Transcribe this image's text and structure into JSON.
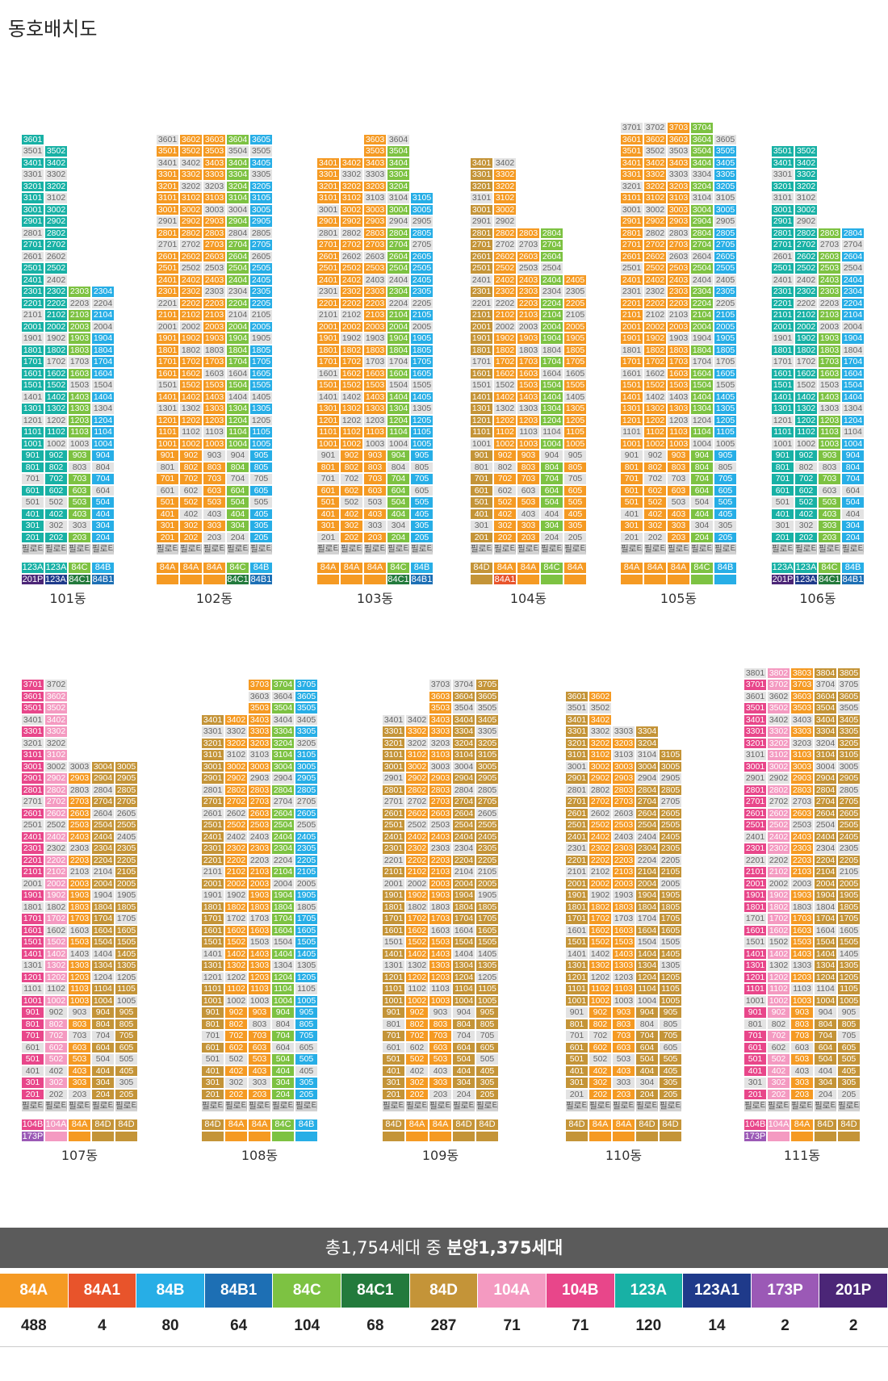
{
  "title": "동호배치도",
  "colors": {
    "84A": "#f59a23",
    "84A1": "#e8542b",
    "84B": "#27aee6",
    "84B1": "#1d6fb4",
    "84C": "#7dc242",
    "84C1": "#237a3c",
    "84D": "#c49438",
    "104A": "#f49ac1",
    "104B": "#e8468a",
    "123A": "#18b1a5",
    "123A1": "#1f3a8a",
    "173P": "#9b59b6",
    "201P": "#4b2677",
    "empty": "#e3e3e3",
    "piloti": "#d2d2d2"
  },
  "summary": {
    "prefix": "총1,754세대 중 ",
    "bold": "분양1,375세대"
  },
  "legend": [
    {
      "type": "84A",
      "count": "488"
    },
    {
      "type": "84A1",
      "count": "4"
    },
    {
      "type": "84B",
      "count": "80"
    },
    {
      "type": "84B1",
      "count": "64"
    },
    {
      "type": "84C",
      "count": "104"
    },
    {
      "type": "84C1",
      "count": "68"
    },
    {
      "type": "84D",
      "count": "287"
    },
    {
      "type": "104A",
      "count": "71"
    },
    {
      "type": "104B",
      "count": "71"
    },
    {
      "type": "123A",
      "count": "120"
    },
    {
      "type": "123A1",
      "count": "14"
    },
    {
      "type": "173P",
      "count": "2"
    },
    {
      "type": "201P",
      "count": "2"
    }
  ],
  "buildings": [
    {
      "name": "101동",
      "floors": 36,
      "colTypes": [
        "123A",
        "123A",
        "84C",
        "84B"
      ],
      "colFloors": [
        36,
        35,
        23,
        23
      ],
      "footer": [
        [
          "123A",
          "123A",
          "84C",
          "84B"
        ],
        [
          "201P",
          "123A1",
          "84C1",
          "84B1"
        ]
      ],
      "roofLabels": [
        "3601",
        "3501"
      ],
      "pilotiText": "필로티"
    },
    {
      "name": "102동",
      "floors": 36,
      "colTypes": [
        "84A",
        "84A",
        "84A",
        "84C",
        "84B"
      ],
      "colFloors": [
        36,
        36,
        36,
        36,
        36
      ],
      "footer": [
        [
          "84A",
          "84A",
          "84A",
          "84C",
          "84B"
        ],
        [
          "",
          "",
          "",
          "84C1",
          "84B1"
        ]
      ],
      "pilotiText": "필로티"
    },
    {
      "name": "103동",
      "floors": 36,
      "colTypes": [
        "84A",
        "84A",
        "84A",
        "84C",
        "84B"
      ],
      "colFloors": [
        34,
        34,
        36,
        36,
        31
      ],
      "footer": [
        [
          "84A",
          "84A",
          "84A",
          "84C",
          "84B"
        ],
        [
          "",
          "",
          "",
          "84C1",
          "84B1"
        ]
      ],
      "pilotiText": "필로티"
    },
    {
      "name": "104동",
      "floors": 34,
      "colTypes": [
        "84D",
        "84A",
        "84A",
        "84C",
        "84A"
      ],
      "colFloors": [
        34,
        34,
        28,
        28,
        24
      ],
      "footer": [
        [
          "84D",
          "84A",
          "84A",
          "84C",
          "84A"
        ],
        [
          "",
          "84A1",
          "",
          "",
          ""
        ]
      ],
      "pilotiText": "필로티"
    },
    {
      "name": "105동",
      "floors": 37,
      "colTypes": [
        "84A",
        "84A",
        "84A",
        "84C",
        "84B"
      ],
      "colFloors": [
        37,
        37,
        37,
        37,
        36
      ],
      "footer": [
        [
          "84A",
          "84A",
          "84A",
          "84C",
          "84B"
        ],
        [
          "",
          "",
          "",
          "",
          ""
        ]
      ],
      "pilotiText": "필로티"
    },
    {
      "name": "106동",
      "floors": 35,
      "colTypes": [
        "123A",
        "123A",
        "84C",
        "84B"
      ],
      "colFloors": [
        35,
        35,
        28,
        28
      ],
      "footer": [
        [
          "123A",
          "123A",
          "84C",
          "84B"
        ],
        [
          "201P",
          "123A1",
          "84C1",
          "84B1"
        ]
      ],
      "pilotiText": "필로티"
    },
    {
      "name": "107동",
      "floors": 37,
      "colTypes": [
        "104B",
        "104A",
        "84A",
        "84D",
        "84D"
      ],
      "colFloors": [
        37,
        37,
        30,
        30,
        30
      ],
      "footer": [
        [
          "104B",
          "104A",
          "84A",
          "84D",
          "84D"
        ],
        [
          "173P",
          "",
          "",
          "",
          ""
        ]
      ],
      "pilotiText": "필로티"
    },
    {
      "name": "108동",
      "floors": 37,
      "colTypes": [
        "84D",
        "84A",
        "84A",
        "84C",
        "84B"
      ],
      "colFloors": [
        34,
        34,
        37,
        37,
        37
      ],
      "footer": [
        [
          "84D",
          "84A",
          "84A",
          "84C",
          "84B"
        ],
        [
          "",
          "",
          "",
          "",
          ""
        ]
      ],
      "pilotiText": "필로티"
    },
    {
      "name": "109동",
      "floors": 37,
      "colTypes": [
        "84D",
        "84A",
        "84A",
        "84D",
        "84D"
      ],
      "colFloors": [
        34,
        34,
        37,
        37,
        37
      ],
      "footer": [
        [
          "84D",
          "84A",
          "84A",
          "84D",
          "84D"
        ],
        [
          "",
          "",
          "",
          "",
          ""
        ]
      ],
      "pilotiText": "필로티"
    },
    {
      "name": "110동",
      "floors": 36,
      "colTypes": [
        "84D",
        "84A",
        "84A",
        "84D",
        "84D"
      ],
      "colFloors": [
        36,
        36,
        33,
        33,
        31
      ],
      "footer": [
        [
          "84D",
          "84A",
          "84A",
          "84D",
          "84D"
        ],
        [
          "",
          "",
          "",
          "",
          ""
        ]
      ],
      "pilotiText": "필로티"
    },
    {
      "name": "111동",
      "floors": 38,
      "colTypes": [
        "104B",
        "104A",
        "84A",
        "84D",
        "84D"
      ],
      "colFloors": [
        38,
        38,
        38,
        38,
        38
      ],
      "footer": [
        [
          "104B",
          "104A",
          "84A",
          "84D",
          "84D"
        ],
        [
          "173P",
          "",
          "",
          "",
          ""
        ]
      ],
      "pilotiText": "필로티"
    }
  ]
}
